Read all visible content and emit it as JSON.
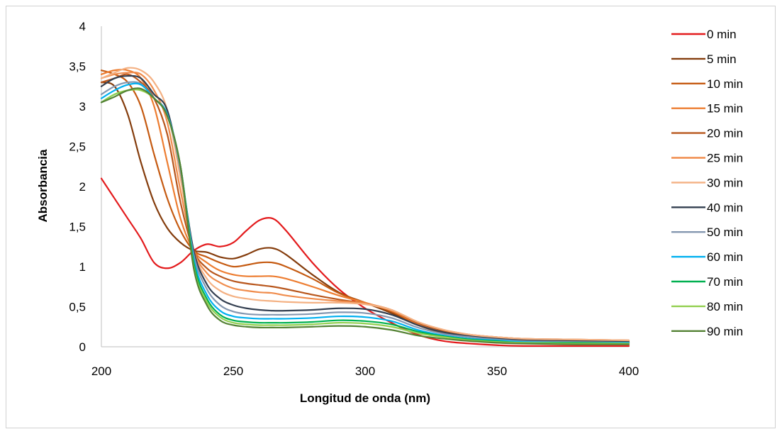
{
  "chart_data": {
    "type": "line",
    "xlabel": "Longitud de onda (nm)",
    "ylabel": "Absorbancia",
    "xlim": [
      200,
      400
    ],
    "ylim": [
      0,
      4
    ],
    "x_ticks": [
      200,
      250,
      300,
      350,
      400
    ],
    "x_tick_labels": [
      "200",
      "250",
      "300",
      "350",
      "400"
    ],
    "y_ticks": [
      0,
      0.5,
      1,
      1.5,
      2,
      2.5,
      3,
      3.5,
      4
    ],
    "y_tick_labels": [
      "0",
      "0,5",
      "1",
      "1,5",
      "2",
      "2,5",
      "3",
      "3,5",
      "4"
    ],
    "grid": false,
    "legend_position": "right",
    "x": [
      200,
      205,
      210,
      215,
      220,
      225,
      230,
      235,
      240,
      245,
      250,
      255,
      260,
      265,
      270,
      280,
      290,
      300,
      310,
      320,
      330,
      340,
      350,
      360,
      380,
      400
    ],
    "series": [
      {
        "name": "0 min",
        "color": "#e31a1c",
        "values": [
          2.1,
          1.85,
          1.6,
          1.35,
          1.05,
          0.98,
          1.05,
          1.2,
          1.28,
          1.25,
          1.3,
          1.45,
          1.58,
          1.6,
          1.45,
          1.05,
          0.72,
          0.48,
          0.3,
          0.15,
          0.07,
          0.04,
          0.02,
          0.01,
          0.01,
          0.01
        ]
      },
      {
        "name": "5 min",
        "color": "#843c0c",
        "values": [
          3.3,
          3.25,
          2.9,
          2.3,
          1.8,
          1.48,
          1.3,
          1.2,
          1.18,
          1.12,
          1.1,
          1.15,
          1.22,
          1.23,
          1.15,
          0.9,
          0.68,
          0.55,
          0.42,
          0.27,
          0.17,
          0.12,
          0.09,
          0.07,
          0.06,
          0.05
        ]
      },
      {
        "name": "10 min",
        "color": "#c55a11",
        "values": [
          3.45,
          3.4,
          3.3,
          3.0,
          2.4,
          1.85,
          1.45,
          1.2,
          1.12,
          1.05,
          1.0,
          1.02,
          1.05,
          1.05,
          1.0,
          0.85,
          0.67,
          0.55,
          0.44,
          0.28,
          0.18,
          0.13,
          0.1,
          0.08,
          0.07,
          0.06
        ]
      },
      {
        "name": "15 min",
        "color": "#ed7d31",
        "values": [
          3.4,
          3.45,
          3.45,
          3.35,
          3.0,
          2.3,
          1.6,
          1.2,
          1.05,
          0.95,
          0.9,
          0.88,
          0.88,
          0.88,
          0.85,
          0.75,
          0.64,
          0.55,
          0.45,
          0.29,
          0.19,
          0.14,
          0.11,
          0.09,
          0.08,
          0.07
        ]
      },
      {
        "name": "20 min",
        "color": "#b8561c",
        "values": [
          3.3,
          3.35,
          3.4,
          3.3,
          3.1,
          2.65,
          1.8,
          1.2,
          0.98,
          0.88,
          0.82,
          0.79,
          0.77,
          0.75,
          0.72,
          0.65,
          0.59,
          0.54,
          0.46,
          0.3,
          0.2,
          0.15,
          0.12,
          0.1,
          0.09,
          0.08
        ]
      },
      {
        "name": "25 min",
        "color": "#f08c4c",
        "values": [
          3.35,
          3.4,
          3.42,
          3.4,
          3.2,
          2.8,
          1.95,
          1.2,
          0.92,
          0.8,
          0.73,
          0.7,
          0.68,
          0.67,
          0.64,
          0.6,
          0.57,
          0.54,
          0.46,
          0.31,
          0.21,
          0.15,
          0.12,
          0.1,
          0.09,
          0.08
        ]
      },
      {
        "name": "30 min",
        "color": "#f4b183",
        "values": [
          3.35,
          3.42,
          3.48,
          3.45,
          3.3,
          2.95,
          2.1,
          1.2,
          0.85,
          0.7,
          0.63,
          0.6,
          0.58,
          0.57,
          0.56,
          0.55,
          0.55,
          0.53,
          0.46,
          0.31,
          0.21,
          0.15,
          0.12,
          0.1,
          0.09,
          0.08
        ]
      },
      {
        "name": "40 min",
        "color": "#333f50",
        "values": [
          3.25,
          3.35,
          3.38,
          3.35,
          3.15,
          2.95,
          2.2,
          1.2,
          0.78,
          0.6,
          0.52,
          0.48,
          0.46,
          0.45,
          0.45,
          0.46,
          0.48,
          0.47,
          0.4,
          0.27,
          0.18,
          0.13,
          0.1,
          0.08,
          0.07,
          0.06
        ]
      },
      {
        "name": "50 min",
        "color": "#8497b0",
        "values": [
          3.15,
          3.25,
          3.3,
          3.28,
          3.1,
          2.9,
          2.2,
          1.15,
          0.72,
          0.52,
          0.44,
          0.41,
          0.4,
          0.4,
          0.4,
          0.41,
          0.43,
          0.42,
          0.36,
          0.24,
          0.16,
          0.12,
          0.09,
          0.07,
          0.06,
          0.05
        ]
      },
      {
        "name": "60 min",
        "color": "#00b0f0",
        "values": [
          3.1,
          3.2,
          3.27,
          3.27,
          3.1,
          2.9,
          2.25,
          1.1,
          0.65,
          0.45,
          0.38,
          0.36,
          0.35,
          0.35,
          0.35,
          0.36,
          0.38,
          0.37,
          0.32,
          0.21,
          0.14,
          0.1,
          0.08,
          0.06,
          0.05,
          0.05
        ]
      },
      {
        "name": "70 min",
        "color": "#00b050",
        "values": [
          3.05,
          3.15,
          3.2,
          3.22,
          3.1,
          2.88,
          2.25,
          1.05,
          0.6,
          0.4,
          0.33,
          0.31,
          0.3,
          0.3,
          0.3,
          0.31,
          0.33,
          0.32,
          0.28,
          0.19,
          0.13,
          0.09,
          0.07,
          0.05,
          0.05,
          0.04
        ]
      },
      {
        "name": "80 min",
        "color": "#92d050",
        "values": [
          3.05,
          3.15,
          3.2,
          3.2,
          3.1,
          2.88,
          2.25,
          1.0,
          0.56,
          0.37,
          0.3,
          0.28,
          0.27,
          0.27,
          0.27,
          0.28,
          0.3,
          0.29,
          0.25,
          0.17,
          0.12,
          0.08,
          0.06,
          0.05,
          0.04,
          0.04
        ]
      },
      {
        "name": "90 min",
        "color": "#548235",
        "values": [
          3.05,
          3.12,
          3.2,
          3.22,
          3.1,
          2.88,
          2.25,
          0.98,
          0.52,
          0.33,
          0.27,
          0.25,
          0.24,
          0.24,
          0.24,
          0.25,
          0.26,
          0.25,
          0.21,
          0.14,
          0.1,
          0.07,
          0.05,
          0.04,
          0.03,
          0.03
        ]
      }
    ]
  }
}
